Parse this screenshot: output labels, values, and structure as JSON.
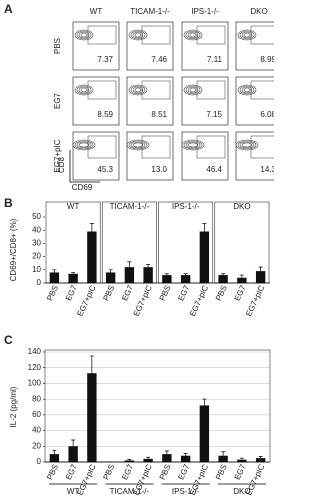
{
  "panel_a": {
    "label": "A",
    "columns": [
      "WT",
      "TICAM-1-/-",
      "IPS-1-/-",
      "DKO"
    ],
    "rows": [
      "PBS",
      "EG7",
      "EG7+pIC"
    ],
    "values": [
      [
        "7.37",
        "7.46",
        "7.11",
        "8.99"
      ],
      [
        "8.59",
        "8.51",
        "7.15",
        "6.08"
      ],
      [
        "45.3",
        "13.0",
        "46.4",
        "14.3"
      ]
    ],
    "x_axis": "CD69",
    "y_axis": "CD8"
  },
  "chart_data": [
    {
      "type": "bar",
      "label": "B",
      "y_label": "CD69+/CD8+ (%)",
      "categories": [
        "PBS",
        "EG7",
        "EG7+pIC"
      ],
      "color": "#111111",
      "ylim": [
        0,
        50
      ],
      "yticks": [
        0,
        10,
        20,
        30,
        40,
        50
      ],
      "grid": false,
      "series": [
        {
          "name": "WT",
          "values": [
            8,
            7,
            39
          ],
          "errors": [
            2,
            1,
            6
          ]
        },
        {
          "name": "TICAM-1-/-",
          "values": [
            8,
            12,
            12
          ],
          "errors": [
            2,
            4,
            2
          ]
        },
        {
          "name": "IPS-1-/-",
          "values": [
            6,
            6,
            39
          ],
          "errors": [
            1,
            1,
            6
          ]
        },
        {
          "name": "DKO",
          "values": [
            6,
            4,
            9
          ],
          "errors": [
            1,
            2,
            3
          ]
        }
      ]
    },
    {
      "type": "bar",
      "label": "C",
      "y_label": "IL-2 (pg/ml)",
      "categories": [
        "PBS",
        "EG7",
        "EG7+pIC"
      ],
      "color": "#111111",
      "ylim": [
        0,
        140
      ],
      "yticks": [
        0,
        20,
        40,
        60,
        80,
        100,
        120,
        140
      ],
      "grid": true,
      "series": [
        {
          "name": "WT",
          "values": [
            10,
            20,
            113
          ],
          "errors": [
            5,
            8,
            22
          ]
        },
        {
          "name": "TICAM-1-/-",
          "values": [
            0,
            2,
            4
          ],
          "errors": [
            0,
            1,
            2
          ]
        },
        {
          "name": "IPS-1-/-",
          "values": [
            10,
            8,
            72
          ],
          "errors": [
            4,
            3,
            8
          ]
        },
        {
          "name": "DKO",
          "values": [
            8,
            3,
            5
          ],
          "errors": [
            5,
            2,
            2
          ]
        }
      ]
    }
  ]
}
